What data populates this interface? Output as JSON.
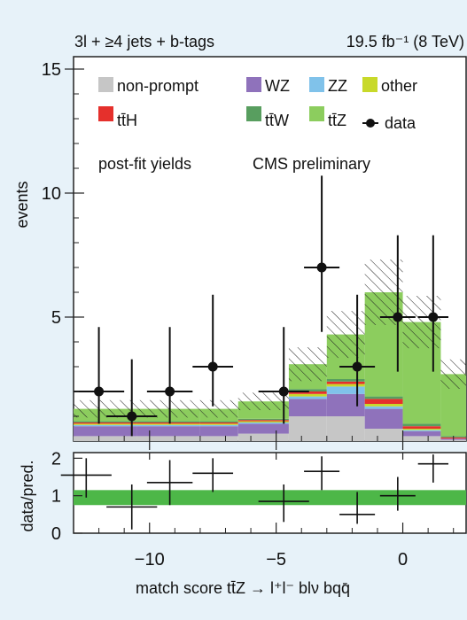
{
  "chart_data": [
    {
      "type": "bar",
      "stacked": true,
      "title_left": "3l + ≥4 jets + b-tags",
      "title_right": "19.5 fb⁻¹ (8 TeV)",
      "annotations": [
        "post-fit yields",
        "CMS preliminary"
      ],
      "xlabel": "match score tt̄Z → l⁺l⁻ blν bqq̄",
      "ylabel": "events",
      "xlim": [
        -13,
        2.5
      ],
      "ylim": [
        0,
        15.5
      ],
      "yticks": [
        5,
        10,
        15
      ],
      "xticks": [
        -10,
        -5,
        0
      ],
      "bin_edges": [
        -13,
        -10.5,
        -8,
        -6.5,
        -4.5,
        -3,
        -1.5,
        0,
        1.5,
        2.5
      ],
      "legend_placement": "top",
      "colors": {
        "non-prompt": "#c6c6c6",
        "WZ": "#8f72bb",
        "ZZ": "#80c2ea",
        "other": "#c8d92a",
        "ttH": "#e5302c",
        "ttW": "#589e5f",
        "ttZ": "#8ccd5e",
        "data": "#111111",
        "ratio_band": "#4db748"
      },
      "series": [
        {
          "name": "non-prompt",
          "values": [
            0.2,
            0.2,
            0.2,
            0.3,
            1.0,
            1.0,
            0.5,
            0.2,
            0.05
          ]
        },
        {
          "name": "WZ",
          "values": [
            0.4,
            0.4,
            0.4,
            0.4,
            0.7,
            0.9,
            0.8,
            0.2,
            0.05
          ]
        },
        {
          "name": "ZZ",
          "values": [
            0.05,
            0.05,
            0.05,
            0.05,
            0.1,
            0.3,
            0.1,
            0.05,
            0.0
          ]
        },
        {
          "name": "other",
          "values": [
            0.05,
            0.05,
            0.05,
            0.05,
            0.1,
            0.1,
            0.1,
            0.05,
            0.0
          ]
        },
        {
          "name": "tt̄H",
          "values": [
            0.05,
            0.05,
            0.05,
            0.05,
            0.1,
            0.1,
            0.2,
            0.1,
            0.05
          ]
        },
        {
          "name": "tt̄W",
          "values": [
            0.05,
            0.05,
            0.05,
            0.05,
            0.1,
            0.1,
            0.1,
            0.1,
            0.05
          ]
        },
        {
          "name": "tt̄Z",
          "values": [
            0.5,
            0.5,
            0.5,
            0.7,
            1.0,
            1.8,
            4.2,
            4.1,
            2.5
          ]
        }
      ],
      "data": {
        "name": "data",
        "x": [
          -12,
          -10.7,
          -9.2,
          -7.5,
          -4.7,
          -3.2,
          -1.8,
          -0.2,
          1.2
        ],
        "y": [
          2,
          1,
          2,
          3,
          2,
          7,
          3,
          5,
          5
        ],
        "yerr_up": [
          2.6,
          2.3,
          2.6,
          2.9,
          2.6,
          3.7,
          2.9,
          3.3,
          3.3
        ],
        "yerr_down": [
          1.3,
          0.8,
          1.3,
          1.6,
          1.3,
          2.6,
          1.6,
          2.2,
          2.2
        ],
        "xerr": [
          1.0,
          1.0,
          0.9,
          0.8,
          1.0,
          0.7,
          0.7,
          0.7,
          0.6
        ]
      }
    },
    {
      "type": "scatter",
      "ylabel": "data/pred.",
      "xlabel": "match score tt̄Z → l⁺l⁻ blν bqq̄",
      "xlim": [
        -13,
        2.5
      ],
      "ylim": [
        0,
        2.15
      ],
      "yticks": [
        0,
        1,
        2
      ],
      "xticks": [
        -10,
        -5,
        0
      ],
      "xtick_labels": [
        "−10",
        "−5",
        "0"
      ],
      "band": {
        "lower": 0.75,
        "upper": 1.15
      },
      "x": [
        -12.5,
        -10.7,
        -9.2,
        -7.5,
        -4.7,
        -3.2,
        -1.8,
        -0.2,
        1.2
      ],
      "y": [
        1.55,
        0.7,
        1.35,
        1.6,
        0.85,
        1.65,
        0.5,
        1.0,
        1.85
      ],
      "yerr_up": [
        0.45,
        0.6,
        0.6,
        0.4,
        0.45,
        0.4,
        0.6,
        0.5,
        0.25
      ],
      "yerr_down": [
        0.6,
        0.6,
        0.6,
        0.5,
        0.55,
        0.5,
        0.25,
        0.4,
        0.5
      ],
      "xerr": [
        1.0,
        1.0,
        0.9,
        0.8,
        1.0,
        0.7,
        0.7,
        0.7,
        0.6
      ]
    }
  ]
}
